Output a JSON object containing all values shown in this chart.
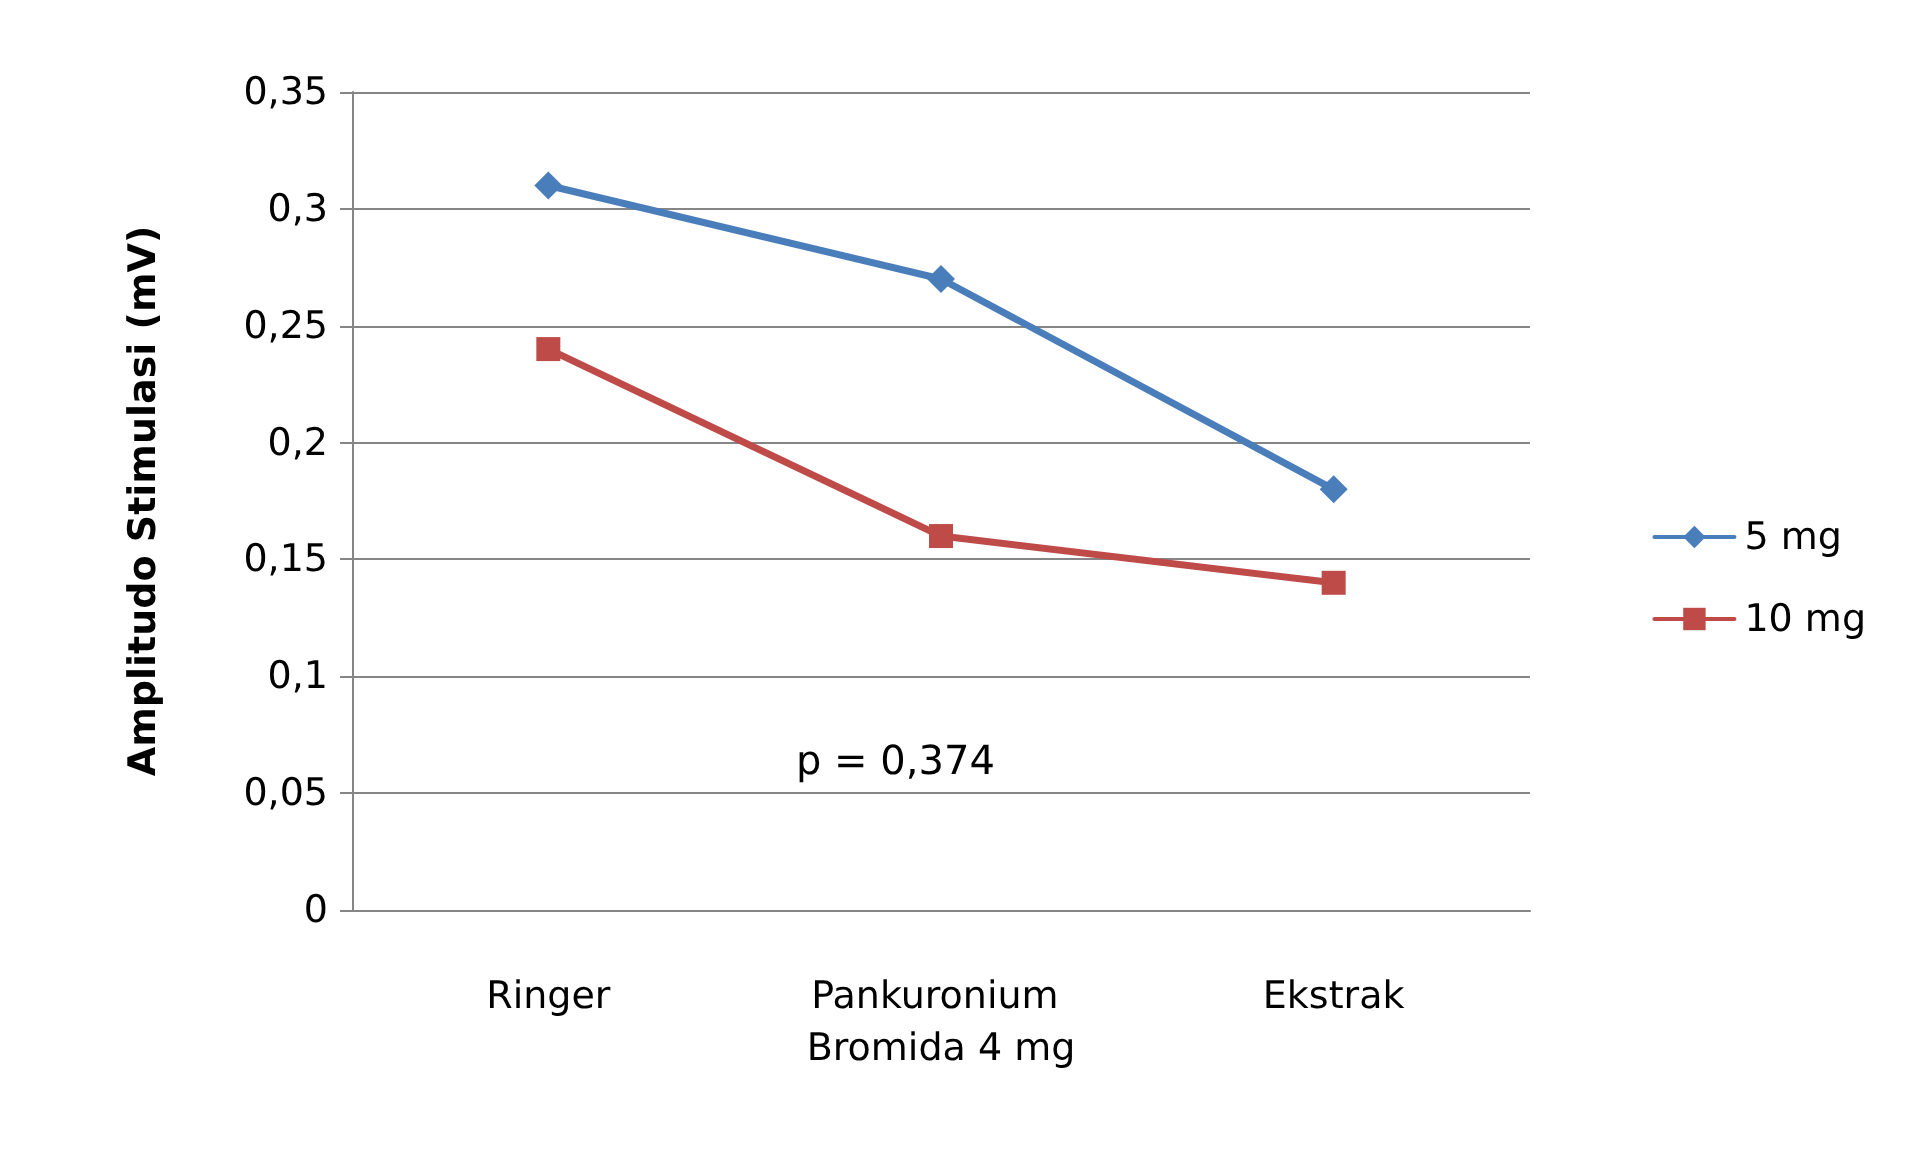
{
  "chart_data": {
    "type": "line",
    "ylabel": "Amplitudo Stimulasi (mV)",
    "categories": [
      "Ringer",
      "Pankuronium Bromida 4 mg",
      "Ekstrak"
    ],
    "series": [
      {
        "name": "5 mg",
        "color": "#4a7ebb",
        "marker": "diamond",
        "values": [
          0.31,
          0.27,
          0.18
        ]
      },
      {
        "name": "10 mg",
        "color": "#be4b48",
        "marker": "square",
        "values": [
          0.24,
          0.16,
          0.14
        ]
      }
    ],
    "ylim": [
      0,
      0.35
    ],
    "yticks": [
      0,
      {
        "value": 0.05,
        "label": "0,05"
      },
      {
        "value": 0.1,
        "label": "0,1"
      },
      {
        "value": 0.15,
        "label": "0,15"
      },
      {
        "value": 0.2,
        "label": "0,2"
      },
      {
        "value": 0.25,
        "label": "0,25"
      },
      {
        "value": 0.3,
        "label": "0,3"
      },
      {
        "value": 0.35,
        "label": "0,35"
      }
    ],
    "grid": "y",
    "legend": "right",
    "line_style": "solid",
    "annotations": [
      "p = 0,374"
    ]
  }
}
